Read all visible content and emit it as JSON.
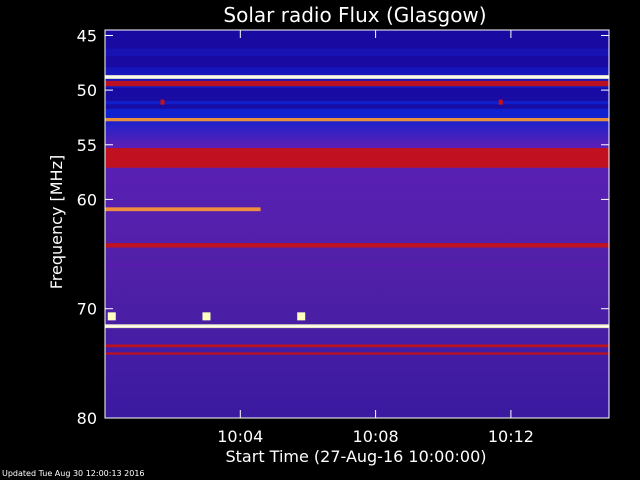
{
  "chart_data": {
    "type": "heatmap",
    "title": "Solar radio Flux (Glasgow)",
    "xlabel": "Start Time (27-Aug-16 10:00:00)",
    "ylabel": "Frequency [MHz]",
    "x_range_minutes": [
      0,
      14.9
    ],
    "y_range_mhz": [
      44.5,
      80
    ],
    "y_ticks": [
      {
        "value": 45,
        "label": "45"
      },
      {
        "value": 50,
        "label": "50"
      },
      {
        "value": 55,
        "label": "55"
      },
      {
        "value": 60,
        "label": "60"
      },
      {
        "value": 70,
        "label": "70"
      },
      {
        "value": 80,
        "label": "80"
      }
    ],
    "x_ticks": [
      {
        "value": 4,
        "label": "10:04"
      },
      {
        "value": 8,
        "label": "10:08"
      },
      {
        "value": 12,
        "label": "10:12"
      }
    ],
    "colors": {
      "background": "#000000",
      "low": "#1a0aa0",
      "mid": "#5a1cb0",
      "high": "#cc1010",
      "hot": "#ff9a30",
      "peak": "#ffffc0"
    },
    "bands": [
      {
        "freq": 44.9,
        "width": 0.7,
        "intensity": "low",
        "extent": [
          0,
          14.9
        ]
      },
      {
        "freq": 45.6,
        "width": 1.2,
        "intensity": "low",
        "extent": [
          0,
          14.9
        ]
      },
      {
        "freq": 47.4,
        "width": 1.0,
        "intensity": "low",
        "extent": [
          0,
          14.9
        ]
      },
      {
        "freq": 48.8,
        "width": 0.35,
        "intensity": "peak",
        "extent": [
          0,
          14.9
        ]
      },
      {
        "freq": 49.4,
        "width": 0.5,
        "intensity": "high",
        "extent": [
          0,
          14.9
        ]
      },
      {
        "freq": 50.4,
        "width": 1.2,
        "intensity": "low",
        "extent": [
          0,
          14.9
        ]
      },
      {
        "freq": 51.5,
        "width": 0.4,
        "intensity": "low",
        "extent": [
          0,
          14.9
        ]
      },
      {
        "freq": 52.7,
        "width": 0.3,
        "intensity": "hot",
        "extent": [
          0,
          14.9
        ]
      },
      {
        "freq": 56.2,
        "width": 1.8,
        "intensity": "high",
        "extent": [
          0,
          14.9
        ]
      },
      {
        "freq": 60.9,
        "width": 0.35,
        "intensity": "hot",
        "extent": [
          0,
          4.6
        ]
      },
      {
        "freq": 64.2,
        "width": 0.4,
        "intensity": "high",
        "extent": [
          0,
          14.9
        ]
      },
      {
        "freq": 66.0,
        "width": 0.3,
        "intensity": "mid",
        "extent": [
          0,
          14.9
        ]
      },
      {
        "freq": 71.6,
        "width": 0.35,
        "intensity": "peak",
        "extent": [
          0,
          14.9
        ]
      },
      {
        "freq": 73.4,
        "width": 0.25,
        "intensity": "high",
        "extent": [
          0,
          14.9
        ]
      },
      {
        "freq": 74.1,
        "width": 0.2,
        "intensity": "high",
        "extent": [
          0,
          14.9
        ]
      }
    ],
    "bursts": [
      {
        "t": 0.2,
        "freq": 70.7,
        "intensity": "peak"
      },
      {
        "t": 3.0,
        "freq": 70.7,
        "intensity": "peak"
      },
      {
        "t": 5.8,
        "freq": 70.7,
        "intensity": "peak"
      },
      {
        "t": 1.7,
        "freq": 51.1,
        "intensity": "high"
      },
      {
        "t": 11.7,
        "freq": 51.1,
        "intensity": "high"
      }
    ]
  },
  "footer": {
    "updated": "Updated Tue Aug 30 12:00:13 2016"
  }
}
